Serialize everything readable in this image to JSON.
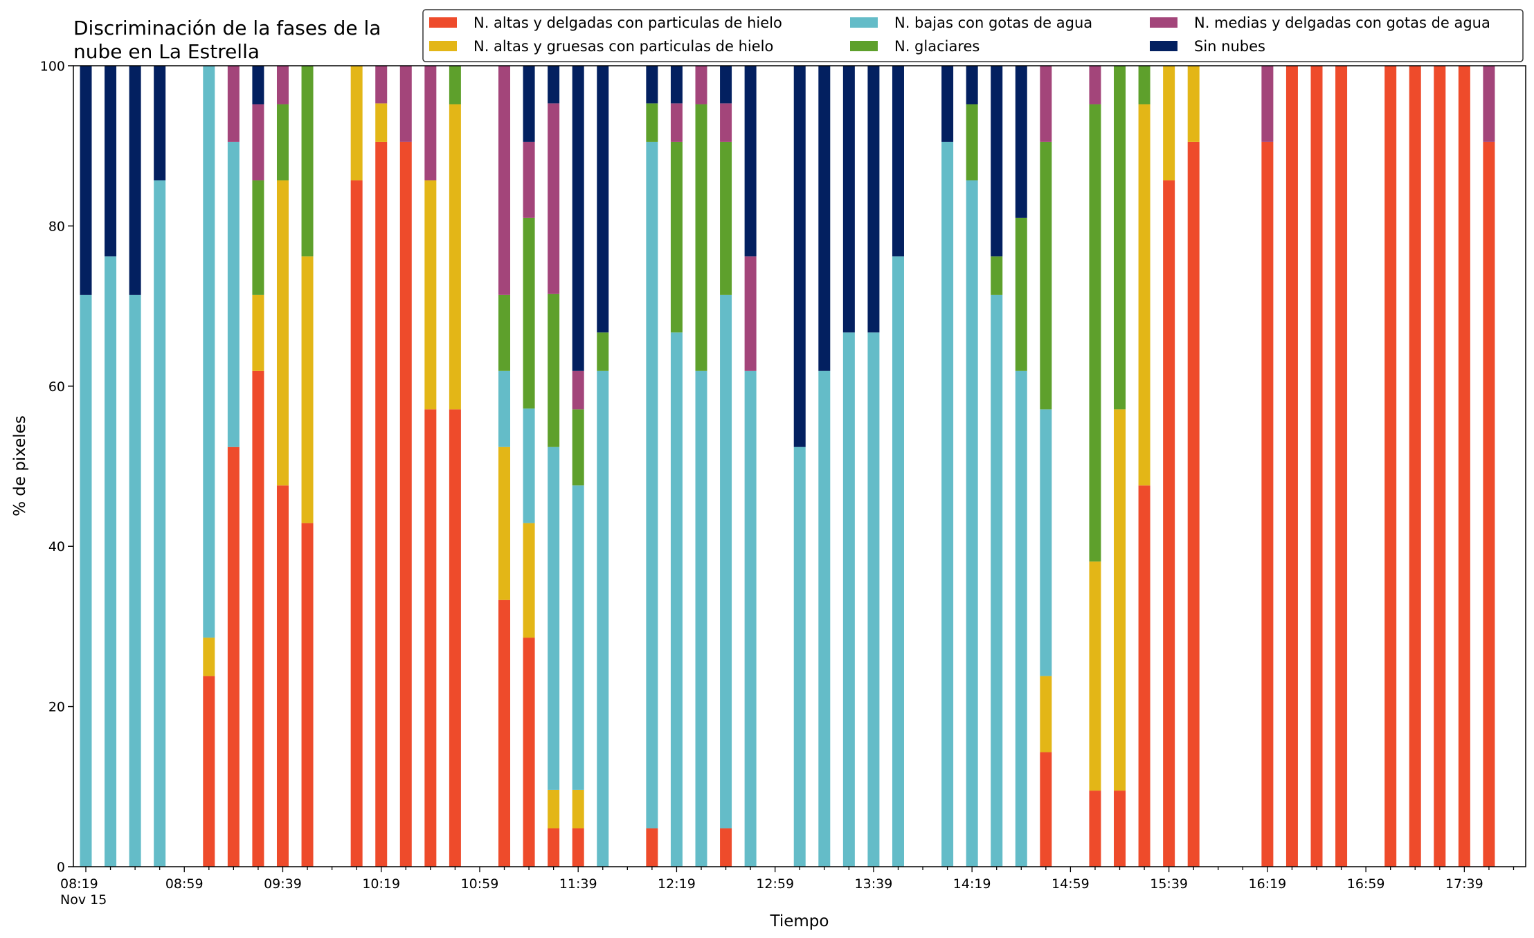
{
  "chart_data": {
    "type": "bar",
    "stacked": true,
    "title": "Discriminación de la fases de la nube en La Estrella",
    "title_lines": [
      "Discriminación de la fases de la",
      "nube en La Estrella"
    ],
    "xlabel": "Tiempo",
    "ylabel": "% de pixeles",
    "ylim": [
      0,
      100
    ],
    "yticks": [
      0,
      20,
      40,
      60,
      80,
      100
    ],
    "x_start": "08:19",
    "x_end": "17:59",
    "x_step_minutes": 10,
    "xtick_labels": [
      "08:19",
      "08:59",
      "09:39",
      "10:19",
      "10:59",
      "11:39",
      "12:19",
      "12:59",
      "13:39",
      "14:19",
      "14:59",
      "15:39",
      "16:19",
      "16:59",
      "17:39"
    ],
    "x_date_label": "Nov 15",
    "legend_position": "top-right",
    "grid": false,
    "series": [
      {
        "name": "N. altas y delgadas con particulas de hielo",
        "color": "#ee4b2b"
      },
      {
        "name": "N. altas y gruesas con particulas de hielo",
        "color": "#e3b617"
      },
      {
        "name": "N. bajas con gotas de agua",
        "color": "#64bcc8"
      },
      {
        "name": "N. glaciares",
        "color": "#5ea02c"
      },
      {
        "name": "N. medias y delgadas con gotas de agua",
        "color": "#a3457a"
      },
      {
        "name": "Sin nubes",
        "color": "#032060"
      }
    ],
    "bars": [
      {
        "time": "08:19",
        "values": [
          0,
          0,
          71.4,
          0,
          0,
          28.6
        ]
      },
      {
        "time": "08:29",
        "values": [
          0,
          0,
          76.2,
          0,
          0,
          23.8
        ]
      },
      {
        "time": "08:39",
        "values": [
          0,
          0,
          71.4,
          0,
          0,
          28.6
        ]
      },
      {
        "time": "08:49",
        "values": [
          0,
          0,
          85.7,
          0,
          0,
          14.3
        ]
      },
      {
        "time": "09:09",
        "values": [
          23.8,
          4.8,
          71.4,
          0,
          0,
          0
        ]
      },
      {
        "time": "09:19",
        "values": [
          52.4,
          0,
          38.1,
          0,
          9.5,
          0
        ]
      },
      {
        "time": "09:29",
        "values": [
          61.9,
          9.5,
          0,
          14.3,
          9.5,
          4.8
        ]
      },
      {
        "time": "09:39",
        "values": [
          47.6,
          38.1,
          0,
          9.5,
          4.8,
          0
        ]
      },
      {
        "time": "09:49",
        "values": [
          42.9,
          33.3,
          0,
          23.8,
          0,
          0
        ]
      },
      {
        "time": "10:09",
        "values": [
          85.7,
          14.3,
          0,
          0,
          0,
          0
        ]
      },
      {
        "time": "10:19",
        "values": [
          90.5,
          4.8,
          0,
          0,
          4.7,
          0
        ]
      },
      {
        "time": "10:29",
        "values": [
          90.5,
          0,
          0,
          0,
          9.5,
          0
        ]
      },
      {
        "time": "10:39",
        "values": [
          57.1,
          28.6,
          0,
          0,
          14.3,
          0
        ]
      },
      {
        "time": "10:49",
        "values": [
          57.1,
          38.1,
          0,
          4.8,
          0,
          0
        ]
      },
      {
        "time": "11:09",
        "values": [
          33.3,
          19.1,
          9.5,
          9.5,
          28.6,
          0
        ]
      },
      {
        "time": "11:19",
        "values": [
          28.6,
          14.3,
          14.3,
          23.8,
          9.5,
          9.5
        ]
      },
      {
        "time": "11:29",
        "values": [
          4.8,
          4.8,
          42.8,
          19.1,
          23.8,
          4.7
        ]
      },
      {
        "time": "11:39",
        "values": [
          4.8,
          4.8,
          38.0,
          9.5,
          4.8,
          38.1
        ]
      },
      {
        "time": "11:49",
        "values": [
          0,
          0,
          61.9,
          4.8,
          0,
          33.3
        ]
      },
      {
        "time": "12:09",
        "values": [
          4.8,
          0,
          85.7,
          4.8,
          0,
          4.7
        ]
      },
      {
        "time": "12:19",
        "values": [
          0,
          0,
          66.7,
          23.8,
          4.8,
          4.7
        ]
      },
      {
        "time": "12:29",
        "values": [
          0,
          0,
          61.9,
          33.3,
          4.8,
          0
        ]
      },
      {
        "time": "12:39",
        "values": [
          4.8,
          0,
          66.6,
          19.1,
          4.8,
          4.7
        ]
      },
      {
        "time": "12:49",
        "values": [
          0,
          0,
          61.9,
          0,
          14.3,
          23.8
        ]
      },
      {
        "time": "13:09",
        "values": [
          0,
          0,
          52.4,
          0,
          0,
          47.6
        ]
      },
      {
        "time": "13:19",
        "values": [
          0,
          0,
          61.9,
          0,
          0,
          38.1
        ]
      },
      {
        "time": "13:29",
        "values": [
          0,
          0,
          66.7,
          0,
          0,
          33.3
        ]
      },
      {
        "time": "13:39",
        "values": [
          0,
          0,
          66.7,
          0,
          0,
          33.3
        ]
      },
      {
        "time": "13:49",
        "values": [
          0,
          0,
          76.2,
          0,
          0,
          23.8
        ]
      },
      {
        "time": "14:09",
        "values": [
          0,
          0,
          90.5,
          0,
          0,
          9.5
        ]
      },
      {
        "time": "14:19",
        "values": [
          0,
          0,
          85.7,
          9.5,
          0,
          4.8
        ]
      },
      {
        "time": "14:29",
        "values": [
          0,
          0,
          71.4,
          4.8,
          0,
          23.8
        ]
      },
      {
        "time": "14:39",
        "values": [
          0,
          0,
          61.9,
          19.1,
          0,
          19.0
        ]
      },
      {
        "time": "14:49",
        "values": [
          14.3,
          9.5,
          33.3,
          33.4,
          9.5,
          0
        ]
      },
      {
        "time": "15:09",
        "values": [
          9.5,
          28.6,
          0,
          57.1,
          4.8,
          0
        ]
      },
      {
        "time": "15:19",
        "values": [
          9.5,
          47.6,
          0,
          42.9,
          0,
          0
        ]
      },
      {
        "time": "15:29",
        "values": [
          47.6,
          47.6,
          0,
          4.8,
          0,
          0
        ]
      },
      {
        "time": "15:39",
        "values": [
          85.7,
          14.3,
          0,
          0,
          0,
          0
        ]
      },
      {
        "time": "15:49",
        "values": [
          90.5,
          9.5,
          0,
          0,
          0,
          0
        ]
      },
      {
        "time": "16:19",
        "values": [
          90.5,
          0,
          0,
          0,
          9.5,
          0
        ]
      },
      {
        "time": "16:29",
        "values": [
          100,
          0,
          0,
          0,
          0,
          0
        ]
      },
      {
        "time": "16:39",
        "values": [
          100,
          0,
          0,
          0,
          0,
          0
        ]
      },
      {
        "time": "16:49",
        "values": [
          100,
          0,
          0,
          0,
          0,
          0
        ]
      },
      {
        "time": "17:09",
        "values": [
          100,
          0,
          0,
          0,
          0,
          0
        ]
      },
      {
        "time": "17:19",
        "values": [
          100,
          0,
          0,
          0,
          0,
          0
        ]
      },
      {
        "time": "17:29",
        "values": [
          100,
          0,
          0,
          0,
          0,
          0
        ]
      },
      {
        "time": "17:39",
        "values": [
          100,
          0,
          0,
          0,
          0,
          0
        ]
      },
      {
        "time": "17:49",
        "values": [
          90.5,
          0,
          0,
          0,
          9.5,
          0
        ]
      }
    ]
  }
}
